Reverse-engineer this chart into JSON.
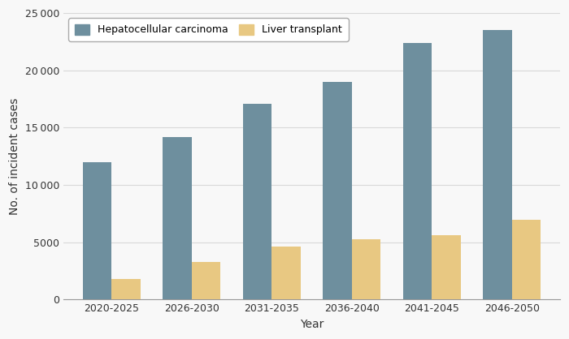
{
  "categories": [
    "2020-2025",
    "2026-2030",
    "2031-2035",
    "2036-2040",
    "2041-2045",
    "2046-2050"
  ],
  "hcc_values": [
    12000,
    14200,
    17100,
    19000,
    22400,
    23500
  ],
  "lt_values": [
    1800,
    3300,
    4600,
    5300,
    5600,
    7000
  ],
  "hcc_color": "#6e8f9e",
  "lt_color": "#e8c882",
  "hcc_label": "Hepatocellular carcinoma",
  "lt_label": "Liver transplant",
  "xlabel": "Year",
  "ylabel": "No. of incident cases",
  "ylim": [
    0,
    25000
  ],
  "yticks": [
    0,
    5000,
    10000,
    15000,
    20000,
    25000
  ],
  "ytick_labels": [
    "0",
    "5000",
    "10 000",
    "15 000",
    "20 000",
    "25 000"
  ],
  "bar_width": 0.36,
  "figure_facecolor": "#f8f8f8",
  "axes_facecolor": "#f8f8f8",
  "grid_color": "#d8d8d8",
  "legend_loc": "upper left",
  "legend_ncol": 2
}
